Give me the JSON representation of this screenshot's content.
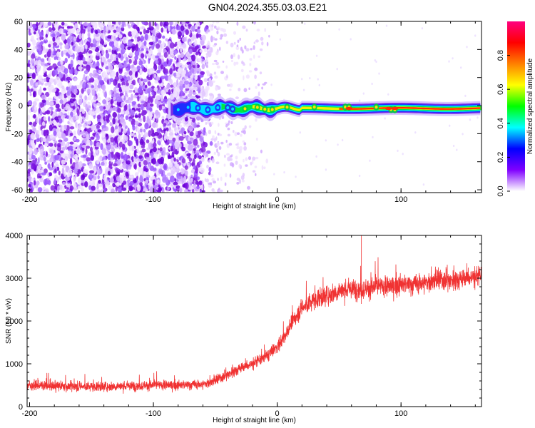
{
  "title": "GN04.2024.355.03.03.E21",
  "chart_data": [
    {
      "type": "heatmap",
      "xlabel": "Height of straight line (km)",
      "ylabel": "Frequency (Hz)",
      "xlim": [
        -202,
        165
      ],
      "ylim": [
        -62,
        60
      ],
      "xticks": [
        "-200",
        "-100",
        "0",
        "100"
      ],
      "yticks": [
        "60",
        "40",
        "20",
        "0",
        "-20",
        "-40",
        "-60"
      ],
      "colorbar": {
        "label": "Normalized spectral amplitude",
        "range": [
          0,
          1
        ],
        "ticks": [
          "0.0",
          "0.2",
          "0.4",
          "0.6",
          "0.8"
        ],
        "colors": [
          "#ffffff",
          "#8000ff",
          "#0000ff",
          "#00ffff",
          "#00ff00",
          "#ffff00",
          "#ff8000",
          "#ff0000",
          "#ff0080"
        ]
      },
      "regions": [
        {
          "x": [
            -200,
            -55
          ],
          "freq": [
            -60,
            60
          ],
          "description": "broadband noise",
          "level": 0.2
        },
        {
          "x": [
            -55,
            -30
          ],
          "freq": [
            -60,
            60
          ],
          "description": "sparse noise",
          "level": 0.08
        },
        {
          "x": [
            -85,
            165
          ],
          "freq": [
            -4,
            2
          ],
          "description": "narrow signal band near 0 Hz",
          "level": 0.9
        }
      ]
    },
    {
      "type": "line",
      "xlabel": "Height of straight line (km)",
      "ylabel": "SNR (10 * v/v)",
      "xlim": [
        -202,
        165
      ],
      "ylim": [
        0,
        4000
      ],
      "xticks": [
        "-200",
        "-100",
        "0",
        "100"
      ],
      "yticks": [
        "4000",
        "3000",
        "2000",
        "1000",
        "0"
      ],
      "color": "#f03232",
      "series": [
        {
          "x": [
            -200,
            -180,
            -160,
            -140,
            -120,
            -100,
            -80,
            -60,
            -50,
            -40,
            -30,
            -20,
            -10,
            0,
            5,
            10,
            15,
            20,
            25,
            30,
            40,
            50,
            60,
            70,
            80,
            90,
            100,
            110,
            120,
            130,
            140,
            150,
            165
          ],
          "values": [
            500,
            480,
            470,
            470,
            480,
            500,
            500,
            520,
            600,
            750,
            900,
            1000,
            1150,
            1400,
            1600,
            1850,
            2100,
            2300,
            2400,
            2500,
            2600,
            2700,
            2750,
            2750,
            2800,
            2800,
            2850,
            2850,
            2900,
            2950,
            2950,
            3000,
            3050
          ]
        }
      ]
    }
  ]
}
